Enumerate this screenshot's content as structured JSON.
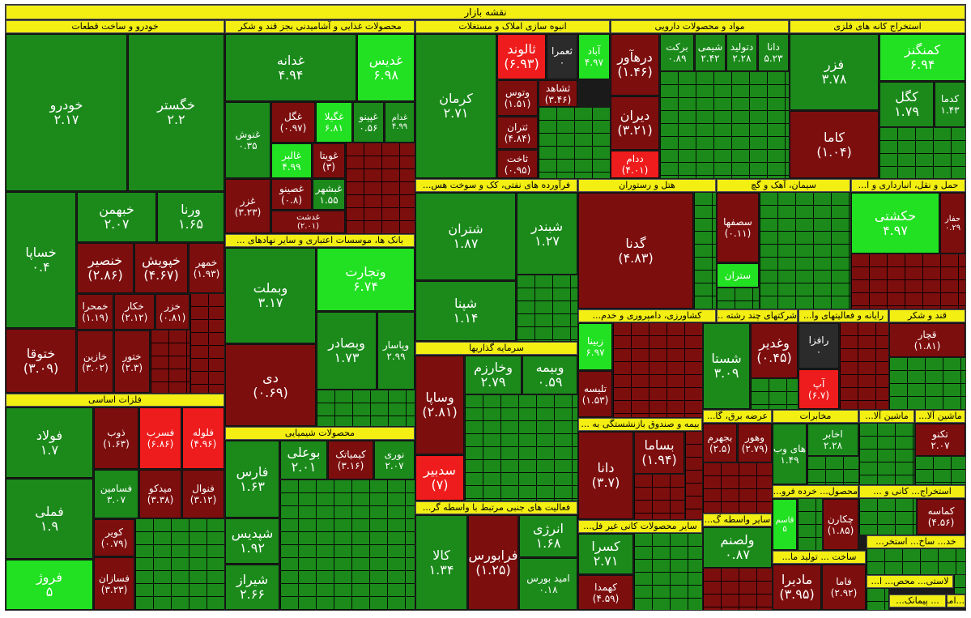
{
  "title": "نقشه بازار",
  "colors": {
    "strong_positive": "#22e022",
    "positive": "#1b8a1b",
    "negative": "#7d0e0e",
    "strong_negative": "#ee1c1c",
    "neutral": "#2b2b2b",
    "header": "#f3ef12"
  },
  "sectors": {
    "auto": "خودرو و ساخت قطعات",
    "food": "محصولات غذایی و آشامیدنی بجز قند و شکر",
    "realestate": "انبوه سازی املاک و مستغلات",
    "pharma": "مواد و محصولات دارویی",
    "mining_metal": "استخراج کانه های فلزی",
    "basic_metals": "فلزات اساسی",
    "chemical": "محصولات شیمیایی",
    "banks": "بانک ها، موسسات اعتباری و سایر نهادهای ...",
    "oil": "فرآورده های نفتی، کک و سوخت هس...",
    "hotel": "هتل و رستوران",
    "cement": "سیمان، آهک و گچ",
    "transport": "حمل و نقل، انبارداری و ا...",
    "investment": "سرمایه گذاریها",
    "agri": "کشاورزی، دامپروری و خدم...",
    "multi": "شرکتهای چند رشته ...",
    "it": "رایانه و فعالیتهای وا...",
    "sugar": "قند و شکر",
    "financial": "فعالیت های جنبی مرتبط با واسطه گر...",
    "insurance": "بیمه و صندوق بازنشستگی به ...",
    "utility": "عرضه برق، گا...",
    "telecom": "مخابرات",
    "machinery": "ماشین آلا...",
    "machinery2": "ماشین آلا...",
    "nonmetal": "سایر محصولات کانی غیر فل...",
    "other_fin": "سایر واسطه گ...",
    "coal": "استخراج... کانی و ...",
    "retail": "محصول... خرده فرو...",
    "construct": "ساخت ... تولید ما...",
    "small1": "خد... ساخ... استخر...",
    "small2": "لاستی... محص... ا...",
    "small3": "... پیمانک...",
    "small4": "...امث"
  },
  "tiles": {
    "khodro": {
      "name": "خودرو",
      "value": "۲.۱۷"
    },
    "khegostar": {
      "name": "خگستر",
      "value": "۲.۲"
    },
    "khsapa": {
      "name": "خساپا",
      "value": "۰.۴"
    },
    "khbahman": {
      "name": "خبهمن",
      "value": "۲.۰۷"
    },
    "vrana": {
      "name": "ورنا",
      "value": "۱.۶۵"
    },
    "khensir": {
      "name": "خنصیر",
      "value": "(۲.۸۶)"
    },
    "khpish": {
      "name": "خپویش",
      "value": "(۴.۶۷)"
    },
    "khmehr": {
      "name": "خمهر",
      "value": "(۱.۹۳)"
    },
    "khemhrat": {
      "name": "خمحرا",
      "value": "(۱.۱۹)"
    },
    "khakar": {
      "name": "خکار",
      "value": "(۲.۱۲)"
    },
    "khazar": {
      "name": "خزر",
      "value": "(۰.۸۱)"
    },
    "khtoqa": {
      "name": "ختوقا",
      "value": "(۳.۰۹)"
    },
    "khazin": {
      "name": "خازین",
      "value": "(۳.۰۲)"
    },
    "khtur": {
      "name": "ختور",
      "value": "(۲.۳)"
    },
    "qazaneh": {
      "name": "غدانه",
      "value": "۴.۹۴"
    },
    "qadis": {
      "name": "غدیس",
      "value": "۶.۹۸"
    },
    "qnosh": {
      "name": "غنوش",
      "value": "۰.۳۵"
    },
    "qgol": {
      "name": "غگل",
      "value": "(۰.۹۷)"
    },
    "qgila": {
      "name": "غگیلا",
      "value": "۶.۸۱"
    },
    "qpino": {
      "name": "غپینو",
      "value": "۰.۵۶"
    },
    "qdam": {
      "name": "غدام",
      "value": "۴.۹۹"
    },
    "qalbir": {
      "name": "غالبر",
      "value": "۴.۹۹"
    },
    "qviata": {
      "name": "غویتا",
      "value": "(۳)"
    },
    "qzar": {
      "name": "غزر",
      "value": "(۳.۲۳)"
    },
    "qesipa": {
      "name": "غصینو",
      "value": "(۰.۸)"
    },
    "qbeshr": {
      "name": "غبشهر",
      "value": "۱.۵۵"
    },
    "qdasht": {
      "name": "غدشت",
      "value": "(۲.۰۱)"
    },
    "kerman": {
      "name": "کرمان",
      "value": "۲.۷۱"
    },
    "thalvand": {
      "name": "ثالوند",
      "value": "(۶.۹۳)"
    },
    "themra": {
      "name": "ثعمرا",
      "value": "۰"
    },
    "thabad": {
      "name": "آباد",
      "value": "۴.۹۷"
    },
    "vtus": {
      "name": "وتوس",
      "value": "(۱.۵۱)"
    },
    "thshahed": {
      "name": "ثشاهد",
      "value": "(۳.۴۶)"
    },
    "thtran": {
      "name": "ثتران",
      "value": "(۴.۸۴)"
    },
    "thakht": {
      "name": "ثاخت",
      "value": "(۰.۹۵)"
    },
    "darhavar": {
      "name": "درهآور",
      "value": "(۱.۴۶)"
    },
    "dbarkat": {
      "name": "برکت",
      "value": "۰.۸۹"
    },
    "dshimi": {
      "name": "شیمی",
      "value": "۲.۴۲"
    },
    "dtolid": {
      "name": "دتولید",
      "value": "۲.۲۸"
    },
    "dana": {
      "name": "دانا",
      "value": "۵.۲۳"
    },
    "dipran": {
      "name": "دیران",
      "value": "(۳.۲۱)"
    },
    "ddam": {
      "name": "ددام",
      "value": "(۴.۰۱)"
    },
    "fazar": {
      "name": "فزر",
      "value": "۳.۷۸"
    },
    "kemangnez": {
      "name": "کمنگنز",
      "value": "۶.۹۴"
    },
    "kgol": {
      "name": "کگل",
      "value": "۱.۷۹"
    },
    "kadma": {
      "name": "کدما",
      "value": "۱.۴۳"
    },
    "kama": {
      "name": "کاما",
      "value": "(۱.۰۴)"
    },
    "fooolad": {
      "name": "فولاد",
      "value": "۱.۷"
    },
    "zob": {
      "name": "ذوب",
      "value": "(۱.۶۳)"
    },
    "fasrab": {
      "name": "فسرب",
      "value": "(۶.۸۶)"
    },
    "folooleh": {
      "name": "فلوله",
      "value": "(۴.۹۶)"
    },
    "fasamin": {
      "name": "فسامین",
      "value": "۳.۰۷"
    },
    "midko": {
      "name": "میدکو",
      "value": "(۳.۳۸)"
    },
    "fanval": {
      "name": "فنوال",
      "value": "(۳.۱۲)"
    },
    "femli": {
      "name": "فملی",
      "value": "۱.۹"
    },
    "kovir": {
      "name": "کویر",
      "value": "(۰.۷۹)"
    },
    "fozroz": {
      "name": "فروژ",
      "value": "۵"
    },
    "fesazan": {
      "name": "فسازان",
      "value": "(۳.۲۳)"
    },
    "vtejarat": {
      "name": "وتجارت",
      "value": "۶.۷۴"
    },
    "vbmelat": {
      "name": "وبملت",
      "value": "۳.۱۷"
    },
    "vbsader": {
      "name": "وبصادر",
      "value": "۱.۷۳"
    },
    "vpasar": {
      "name": "وپاسار",
      "value": "۲.۹۹"
    },
    "di": {
      "name": "دی",
      "value": "(۰.۶۹)"
    },
    "shatran": {
      "name": "شتران",
      "value": "۱.۸۷"
    },
    "shbandar": {
      "name": "شبندر",
      "value": "۱.۲۷"
    },
    "shepna": {
      "name": "شپنا",
      "value": "۱.۱۴"
    },
    "gadna": {
      "name": "گدنا",
      "value": "(۴.۸۳)"
    },
    "sefha": {
      "name": "سصفها",
      "value": "(۰.۱۱)"
    },
    "strun": {
      "name": "ستران",
      "value": ""
    },
    "hekeshti": {
      "name": "حکشتی",
      "value": "۴.۹۷"
    },
    "hafar": {
      "name": "حفار",
      "value": "۰.۲۹"
    },
    "vsapa": {
      "name": "وساپا",
      "value": "(۲.۸۱)"
    },
    "vkharzam": {
      "name": "وخارزم",
      "value": "۲.۷۹"
    },
    "vbime": {
      "name": "وبیمه",
      "value": "۰.۵۹"
    },
    "sadbir": {
      "name": "سدبیر",
      "value": "(۷)"
    },
    "zabini": {
      "name": "زبینا",
      "value": "۶.۹۷"
    },
    "telise": {
      "name": "تلیسه",
      "value": "(۱.۵۳)"
    },
    "shasta": {
      "name": "شستا",
      "value": "۳.۰۹"
    },
    "vghadir": {
      "name": "وغدیر",
      "value": "(۰.۴۵)"
    },
    "rafza": {
      "name": "رافزا",
      "value": "۰"
    },
    "ap": {
      "name": "آپ",
      "value": "(۶.۷)"
    },
    "qchar": {
      "name": "قچار",
      "value": "(۱.۸۱)"
    },
    "farss": {
      "name": "فارس",
      "value": "۱.۶۳"
    },
    "boali": {
      "name": "بوعلی",
      "value": "۲.۰۱"
    },
    "kimiatak": {
      "name": "کیمیاتک",
      "value": "(۳.۱۶)"
    },
    "noori": {
      "name": "نوری",
      "value": "۲.۰۷"
    },
    "shepdis": {
      "name": "شپدیس",
      "value": "۱.۹۲"
    },
    "shiraz": {
      "name": "شیراز",
      "value": "۲.۶۶"
    },
    "kala": {
      "name": "کالا",
      "value": "۱.۳۴"
    },
    "faraboors": {
      "name": "فرابورس",
      "value": "(۱.۲۵)"
    },
    "anrezhi": {
      "name": "انرژی",
      "value": "۱.۶۸"
    },
    "amidboors": {
      "name": "امید بورس",
      "value": "۰.۱۸"
    },
    "dana2": {
      "name": "دانا",
      "value": "(۳.۷)"
    },
    "basma": {
      "name": "بساما",
      "value": "(۱.۹۴)"
    },
    "kasra": {
      "name": "کسرا",
      "value": "۲.۷۱"
    },
    "kahmda": {
      "name": "کهمدا",
      "value": "(۴.۵۹)"
    },
    "vlsamen": {
      "name": "ولصنم",
      "value": "۰.۸۷"
    },
    "hbhrm": {
      "name": "بجهرم",
      "value": "(۲.۵)"
    },
    "vhvor": {
      "name": "وهور",
      "value": "(۲.۷۹)"
    },
    "hay_vap": {
      "name": "های وب",
      "value": "۱.۴۹"
    },
    "akhaber": {
      "name": "اخابر",
      "value": "۲.۲۸"
    },
    "tekno": {
      "name": "تکنو",
      "value": "۲.۰۷"
    },
    "ghasem": {
      "name": "قاسم",
      "value": "۵"
    },
    "chekaran": {
      "name": "چکارن",
      "value": "(۱.۸۵)"
    },
    "kamase": {
      "name": "کماسه",
      "value": "(۴.۵۶)"
    },
    "madira": {
      "name": "مادیرا",
      "value": "(۳.۹۵)"
    },
    "fama": {
      "name": "فاما",
      "value": "(۲.۹۲)"
    }
  }
}
